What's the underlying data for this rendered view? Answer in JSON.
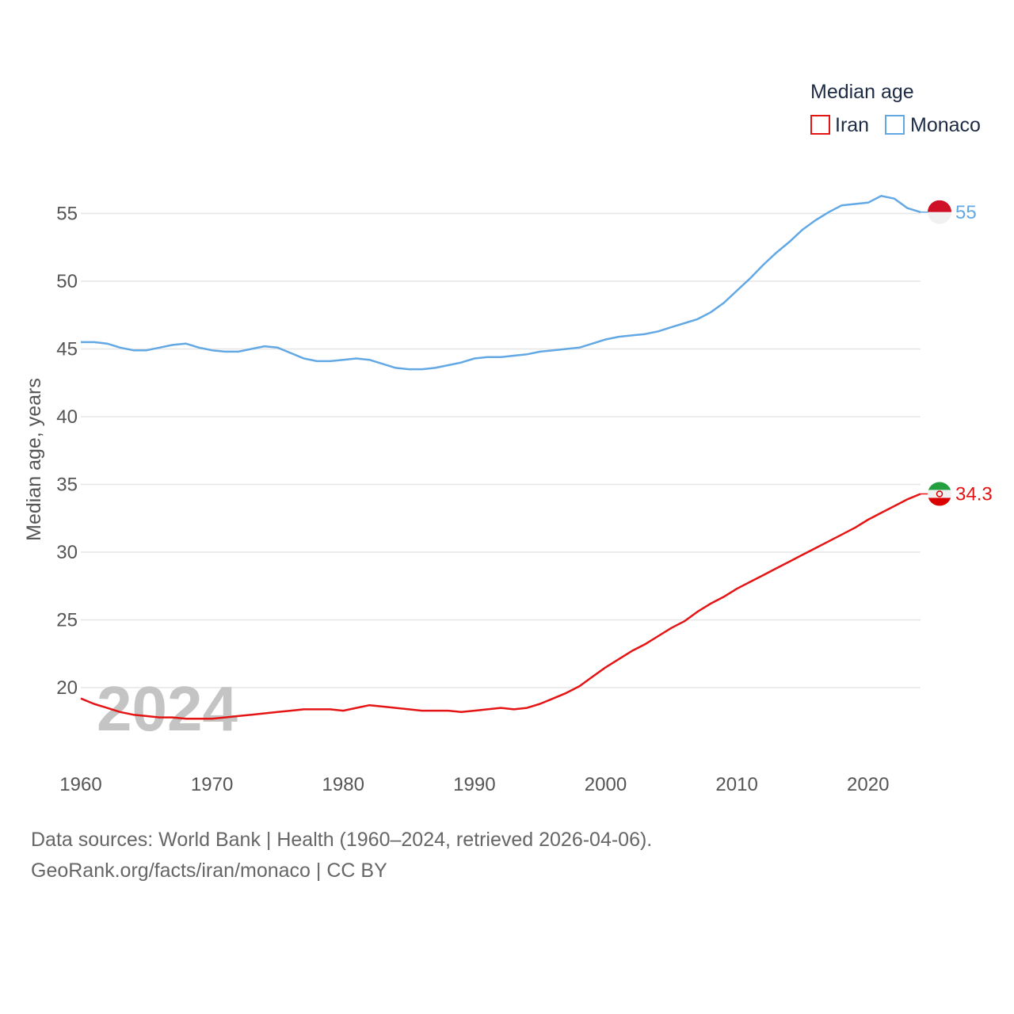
{
  "chart_data": {
    "type": "line",
    "ylabel": "Median age, years",
    "xlim": [
      1960,
      2024
    ],
    "ylim": [
      15,
      58
    ],
    "x_ticks": [
      1960,
      1970,
      1980,
      1990,
      2000,
      2010,
      2020
    ],
    "y_ticks": [
      20,
      25,
      30,
      35,
      40,
      45,
      50,
      55
    ],
    "grid": true,
    "legend_title": "Median age",
    "legend_position": "top-right",
    "year_watermark": "2024",
    "x": [
      1960,
      1961,
      1962,
      1963,
      1964,
      1965,
      1966,
      1967,
      1968,
      1969,
      1970,
      1971,
      1972,
      1973,
      1974,
      1975,
      1976,
      1977,
      1978,
      1979,
      1980,
      1981,
      1982,
      1983,
      1984,
      1985,
      1986,
      1987,
      1988,
      1989,
      1990,
      1991,
      1992,
      1993,
      1994,
      1995,
      1996,
      1997,
      1998,
      1999,
      2000,
      2001,
      2002,
      2003,
      2004,
      2005,
      2006,
      2007,
      2008,
      2009,
      2010,
      2011,
      2012,
      2013,
      2014,
      2015,
      2016,
      2017,
      2018,
      2019,
      2020,
      2021,
      2022,
      2023,
      2024
    ],
    "series": [
      {
        "name": "Iran",
        "color": "#e51414",
        "end_label": "34.3",
        "flag": "iran-flag-icon",
        "values": [
          19.2,
          18.8,
          18.5,
          18.2,
          18.0,
          17.9,
          17.8,
          17.8,
          17.7,
          17.7,
          17.7,
          17.8,
          17.9,
          18.0,
          18.1,
          18.2,
          18.3,
          18.4,
          18.4,
          18.4,
          18.3,
          18.5,
          18.7,
          18.6,
          18.5,
          18.4,
          18.3,
          18.3,
          18.3,
          18.2,
          18.3,
          18.4,
          18.5,
          18.4,
          18.5,
          18.8,
          19.2,
          19.6,
          20.1,
          20.8,
          21.5,
          22.1,
          22.7,
          23.2,
          23.8,
          24.4,
          24.9,
          25.6,
          26.2,
          26.7,
          27.3,
          27.8,
          28.3,
          28.8,
          29.3,
          29.8,
          30.3,
          30.8,
          31.3,
          31.8,
          32.4,
          32.9,
          33.4,
          33.9,
          34.3
        ]
      },
      {
        "name": "Monaco",
        "color": "#62a8e5",
        "end_label": "55",
        "flag": "monaco-flag-icon",
        "values": [
          45.5,
          45.5,
          45.4,
          45.1,
          44.9,
          44.9,
          45.1,
          45.3,
          45.4,
          45.1,
          44.9,
          44.8,
          44.8,
          45.0,
          45.2,
          45.1,
          44.7,
          44.3,
          44.1,
          44.1,
          44.2,
          44.3,
          44.2,
          43.9,
          43.6,
          43.5,
          43.5,
          43.6,
          43.8,
          44.0,
          44.3,
          44.4,
          44.4,
          44.5,
          44.6,
          44.8,
          44.9,
          45.0,
          45.1,
          45.4,
          45.7,
          45.9,
          46.0,
          46.1,
          46.3,
          46.6,
          46.9,
          47.2,
          47.7,
          48.4,
          49.3,
          50.2,
          51.2,
          52.1,
          52.9,
          53.8,
          54.5,
          55.1,
          55.6,
          55.7,
          55.8,
          56.3,
          56.1,
          55.4,
          55.1
        ]
      }
    ]
  },
  "footer": {
    "line1": "Data sources: World Bank | Health (1960–2024, retrieved 2026-04-06).",
    "line2": "GeoRank.org/facts/iran/monaco | CC BY"
  }
}
